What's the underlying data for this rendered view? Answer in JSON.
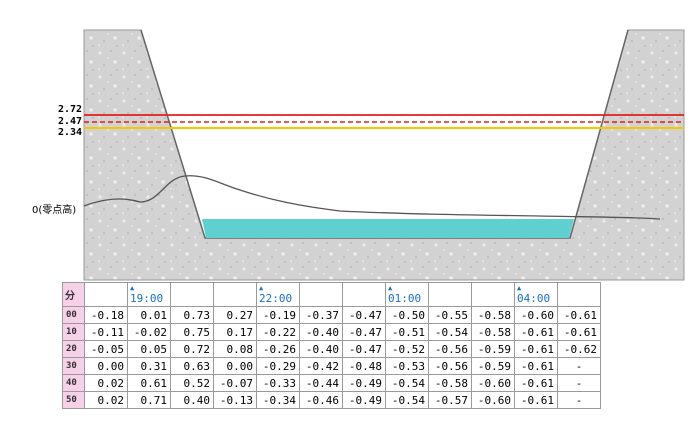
{
  "levels": {
    "red_value": "2.72",
    "dashed_value": "2.47",
    "yellow_value": "2.34",
    "zero_label": "0(零点高)",
    "colors": {
      "red": "#e0201c",
      "yellow": "#f2c800",
      "water": "#5fcfcf",
      "bank": "#d4d4d4"
    }
  },
  "table": {
    "minute_header": "分",
    "time_markers": [
      {
        "col": 1,
        "time": "19:00"
      },
      {
        "col": 4,
        "time": "22:00"
      },
      {
        "col": 7,
        "time": "01:00"
      },
      {
        "col": 10,
        "time": "04:00"
      }
    ],
    "rows": [
      {
        "minute": "00",
        "values": [
          "-0.18",
          "0.01",
          "0.73",
          "0.27",
          "-0.19",
          "-0.37",
          "-0.47",
          "-0.50",
          "-0.55",
          "-0.58",
          "-0.60",
          "-0.61"
        ]
      },
      {
        "minute": "10",
        "values": [
          "-0.11",
          "-0.02",
          "0.75",
          "0.17",
          "-0.22",
          "-0.40",
          "-0.47",
          "-0.51",
          "-0.54",
          "-0.58",
          "-0.61",
          "-0.61"
        ]
      },
      {
        "minute": "20",
        "values": [
          "-0.05",
          "0.05",
          "0.72",
          "0.08",
          "-0.26",
          "-0.40",
          "-0.47",
          "-0.52",
          "-0.56",
          "-0.59",
          "-0.61",
          "-0.62"
        ]
      },
      {
        "minute": "30",
        "values": [
          "0.00",
          "0.31",
          "0.63",
          "0.00",
          "-0.29",
          "-0.42",
          "-0.48",
          "-0.53",
          "-0.56",
          "-0.59",
          "-0.61",
          "-"
        ]
      },
      {
        "minute": "40",
        "values": [
          "0.02",
          "0.61",
          "0.52",
          "-0.07",
          "-0.33",
          "-0.44",
          "-0.49",
          "-0.54",
          "-0.58",
          "-0.60",
          "-0.61",
          "-"
        ]
      },
      {
        "minute": "50",
        "values": [
          "0.02",
          "0.71",
          "0.40",
          "-0.13",
          "-0.34",
          "-0.46",
          "-0.49",
          "-0.54",
          "-0.57",
          "-0.60",
          "-0.61",
          "-"
        ]
      }
    ]
  }
}
